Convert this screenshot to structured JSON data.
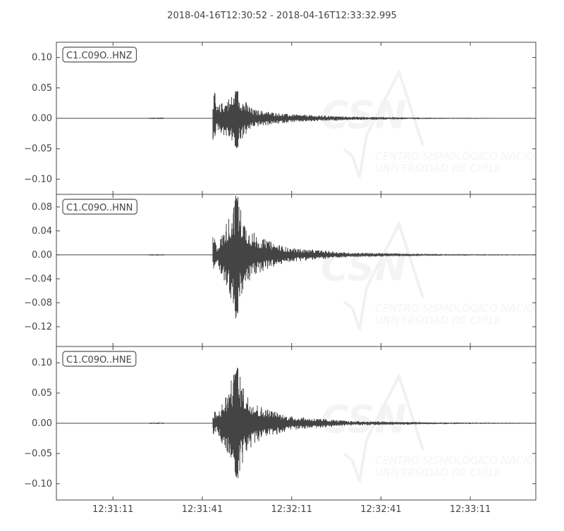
{
  "chart_data": {
    "type": "line",
    "title": "2018-04-16T12:30:52  -  2018-04-16T12:33:32.995",
    "x_range": [
      "2018-04-16T12:30:52",
      "2018-04-16T12:33:32.995"
    ],
    "x_ticks": [
      "12:31:11",
      "12:31:41",
      "12:32:11",
      "12:32:41",
      "12:33:11"
    ],
    "line_color": "#444444",
    "watermark": [
      "CSN",
      "CENTRO SISMOLÓGICO NACIONAL",
      "UNIVERSIDAD DE CHILE"
    ],
    "panels": [
      {
        "label": "C1.C09O..HNZ",
        "ylim": [
          -0.125,
          0.125
        ],
        "y_ticks": [
          "0.10",
          "0.05",
          "0.00",
          "−0.05",
          "−0.10"
        ],
        "y_tick_values": [
          0.1,
          0.05,
          0.0,
          -0.05,
          -0.1
        ],
        "onset": "12:31:44.5",
        "max": 0.045,
        "min": -0.05,
        "envelope": [
          [
            "12:31:44.5",
            0.042
          ],
          [
            "12:31:46",
            0.02
          ],
          [
            "12:31:52.5",
            0.045
          ],
          [
            "12:31:58",
            0.015
          ],
          [
            "12:32:10",
            0.007
          ],
          [
            "12:32:30",
            0.003
          ],
          [
            "12:33:00",
            0.001
          ],
          [
            "12:33:32",
            0.0005
          ]
        ]
      },
      {
        "label": "C1.C09O..HNN",
        "ylim": [
          -0.153,
          0.101
        ],
        "y_ticks": [
          "0.08",
          "0.04",
          "0.00",
          "−0.04",
          "−0.08",
          "−0.12"
        ],
        "y_tick_values": [
          0.08,
          0.04,
          0.0,
          -0.04,
          -0.08,
          -0.12
        ],
        "onset": "12:31:44.5",
        "max": 0.099,
        "min": -0.107,
        "envelope": [
          [
            "12:31:44.5",
            0.03
          ],
          [
            "12:31:46",
            0.015
          ],
          [
            "12:31:52.5",
            0.1
          ],
          [
            "12:31:56",
            0.05
          ],
          [
            "12:32:00",
            0.03
          ],
          [
            "12:32:10",
            0.012
          ],
          [
            "12:32:30",
            0.004
          ],
          [
            "12:33:00",
            0.0015
          ],
          [
            "12:33:32",
            0.0008
          ]
        ]
      },
      {
        "label": "C1.C09O..HNE",
        "ylim": [
          -0.127,
          0.127
        ],
        "y_ticks": [
          "0.10",
          "0.05",
          "0.00",
          "−0.05",
          "−0.10"
        ],
        "y_tick_values": [
          0.1,
          0.05,
          0.0,
          -0.05,
          -0.1
        ],
        "onset": "12:31:44.5",
        "max": 0.093,
        "min": -0.093,
        "envelope": [
          [
            "12:31:44.5",
            0.02
          ],
          [
            "12:31:46",
            0.015
          ],
          [
            "12:31:52.5",
            0.093
          ],
          [
            "12:31:56",
            0.05
          ],
          [
            "12:32:00",
            0.03
          ],
          [
            "12:32:10",
            0.012
          ],
          [
            "12:32:30",
            0.004
          ],
          [
            "12:33:00",
            0.0015
          ],
          [
            "12:33:32",
            0.0008
          ]
        ]
      }
    ]
  }
}
